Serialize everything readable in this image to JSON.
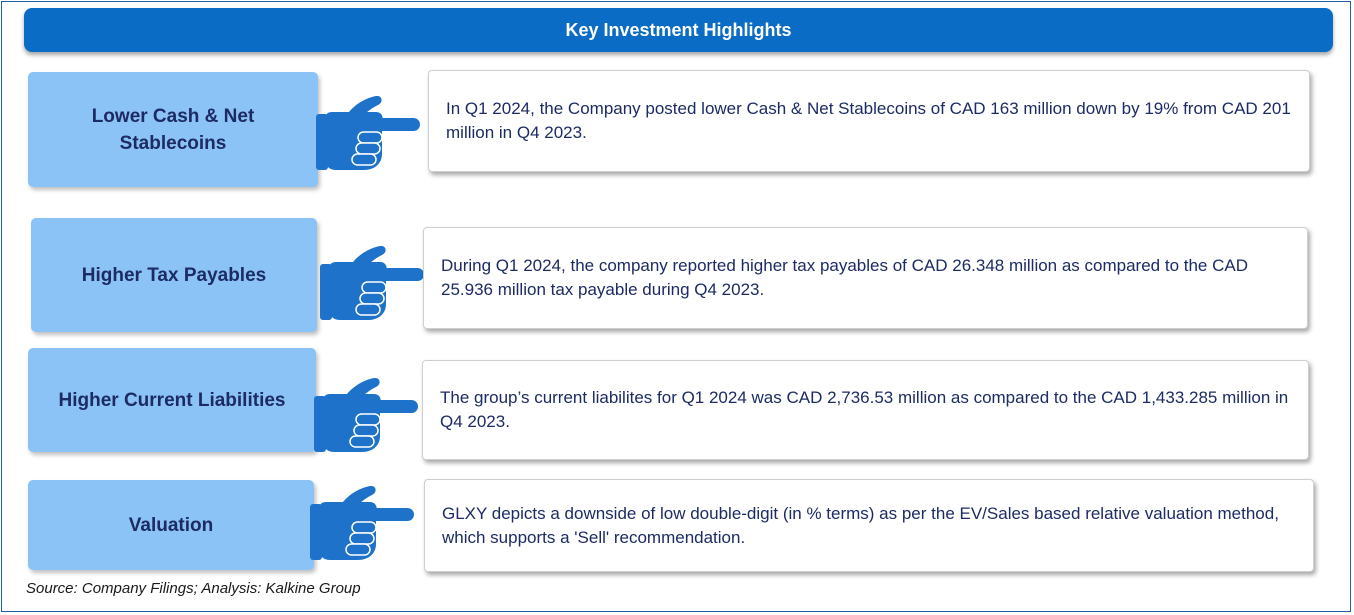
{
  "header": {
    "title": "Key Investment Highlights"
  },
  "highlights": [
    {
      "label": "Lower Cash & Net Stablecoins",
      "text": "In Q1 2024, the  Company posted lower Cash & Net Stablecoins of CAD 163 million down by 19% from CAD 201 million in Q4 2023."
    },
    {
      "label": "Higher  Tax Payables",
      "text": "During Q1 2024, the company reported   higher  tax payables  of CAD 26.348 million as compared to the CAD 25.936  million tax payable during Q4 2023."
    },
    {
      "label": "Higher Current Liabilities",
      "text": "The group’s  current liabilites for Q1 2024 was CAD 2,736.53 million as compared to the CAD 1,433.285 million in Q4 2023."
    },
    {
      "label": "Valuation",
      "text": "GLXY  depicts a downside of low double-digit (in % terms) as per the EV/Sales based relative valuation method, which supports a 'Sell' recommendation."
    }
  ],
  "footer": {
    "source": "Source: Company Filings; Analysis: Kalkine Group"
  },
  "icons": {
    "pointer": "pointing-hand-icon"
  },
  "colors": {
    "header_bg": "#0a6cc4",
    "label_bg": "#8cc3f7",
    "text_color": "#1c2b63",
    "hand_color": "#1f72c9"
  }
}
